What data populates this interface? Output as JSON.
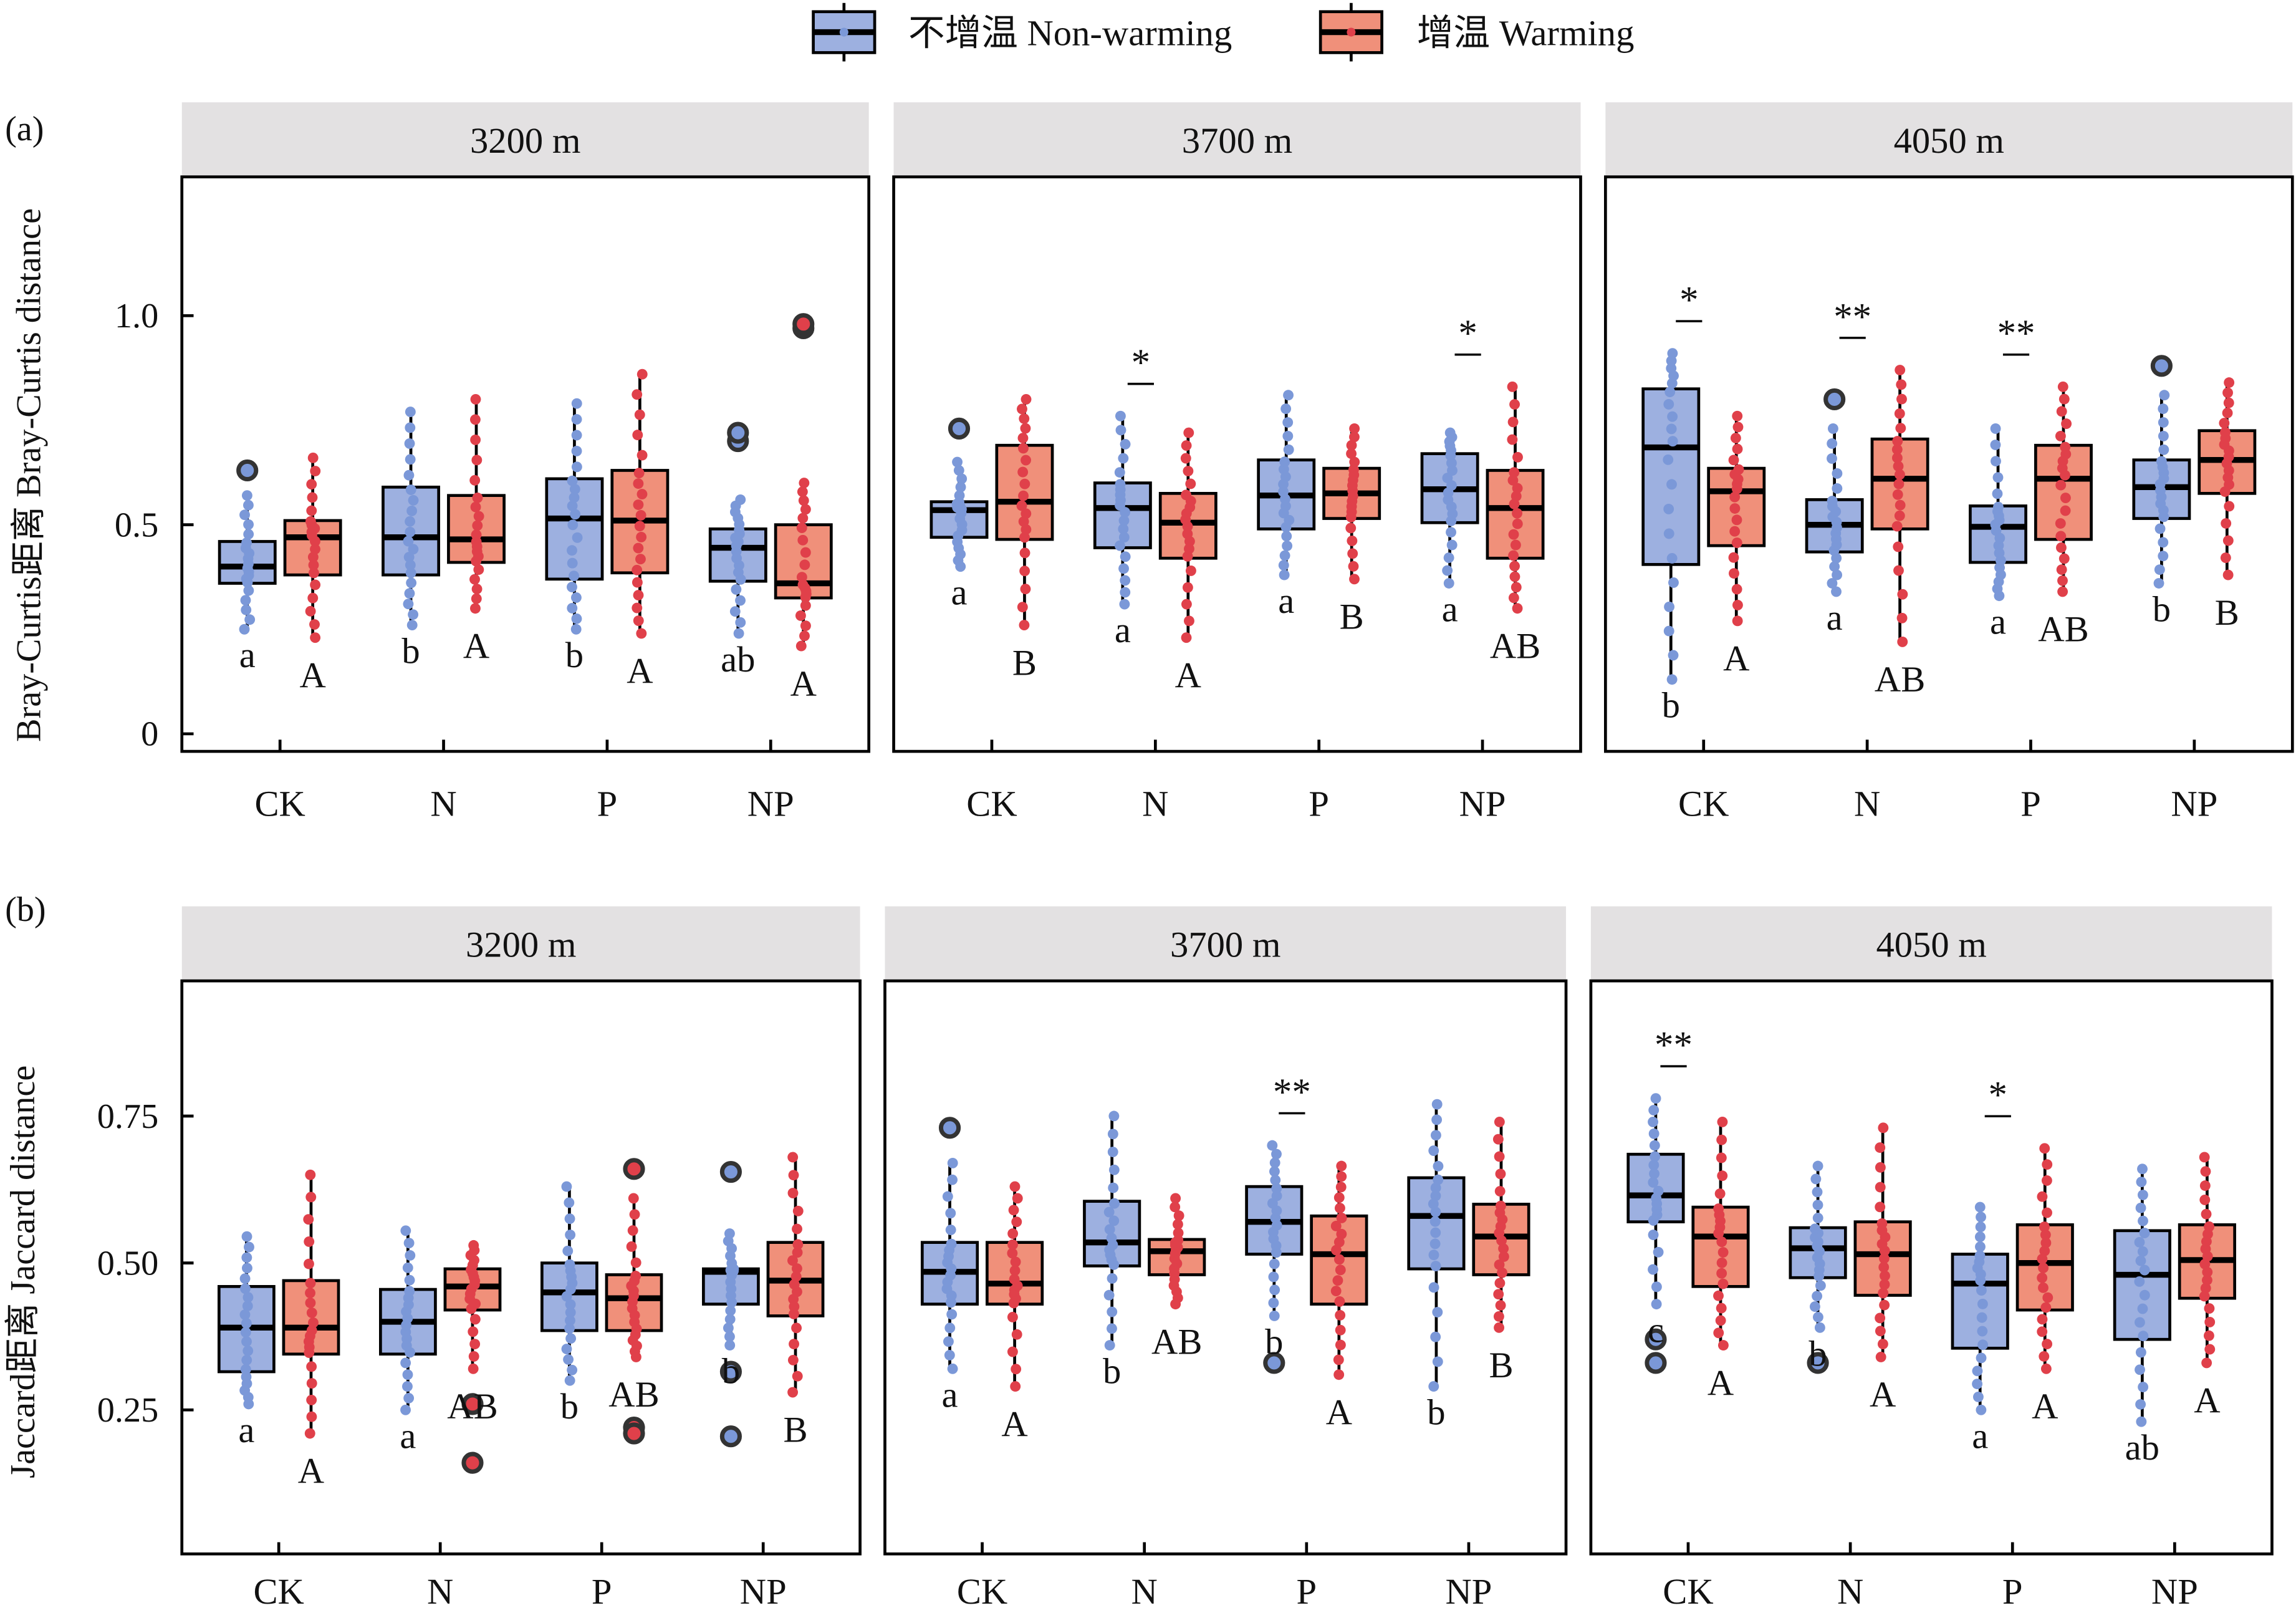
{
  "legend": {
    "items": [
      {
        "label": "不增温 Non-warming",
        "fill": "#9db0e0",
        "dot": "#7b98d8"
      },
      {
        "label": "增温 Warming",
        "fill": "#f0907a",
        "dot": "#e0404a"
      }
    ]
  },
  "colors": {
    "strip_bg": "#e3e1e2",
    "outlier_ring": "#333333",
    "median": "#000000"
  },
  "chart_data": [
    {
      "type": "box",
      "panel_label": "(a)",
      "ylabel": "Bray-Curtis距离 Bray-Curtis distance",
      "ylim": [
        -0.042,
        1.332
      ],
      "yticks": [
        {
          "v": 0,
          "label": "0"
        },
        {
          "v": 0.5,
          "label": "0.5"
        },
        {
          "v": 1.0,
          "label": "1.0"
        }
      ],
      "categories": [
        "CK",
        "N",
        "P",
        "NP"
      ],
      "facets": [
        {
          "title": "3200 m",
          "groups": [
            {
              "non": {
                "q1": 0.36,
                "med": 0.4,
                "q3": 0.46,
                "lo": 0.25,
                "hi": 0.57,
                "out": [
                  0.63
                ],
                "letter": "a"
              },
              "warm": {
                "q1": 0.38,
                "med": 0.47,
                "q3": 0.51,
                "lo": 0.23,
                "hi": 0.66,
                "out": [],
                "letter": "A"
              },
              "sig": ""
            },
            {
              "non": {
                "q1": 0.38,
                "med": 0.47,
                "q3": 0.59,
                "lo": 0.26,
                "hi": 0.77,
                "out": [],
                "letter": "b"
              },
              "warm": {
                "q1": 0.41,
                "med": 0.465,
                "q3": 0.57,
                "lo": 0.3,
                "hi": 0.8,
                "out": [],
                "letter": "A"
              },
              "sig": ""
            },
            {
              "non": {
                "q1": 0.37,
                "med": 0.515,
                "q3": 0.61,
                "lo": 0.25,
                "hi": 0.79,
                "out": [],
                "letter": "b"
              },
              "warm": {
                "q1": 0.385,
                "med": 0.51,
                "q3": 0.63,
                "lo": 0.24,
                "hi": 0.86,
                "out": [],
                "letter": "A"
              },
              "sig": ""
            },
            {
              "non": {
                "q1": 0.365,
                "med": 0.445,
                "q3": 0.49,
                "lo": 0.24,
                "hi": 0.56,
                "out": [
                  0.7,
                  0.72
                ],
                "letter": "ab"
              },
              "warm": {
                "q1": 0.325,
                "med": 0.36,
                "q3": 0.5,
                "lo": 0.21,
                "hi": 0.6,
                "out": [
                  0.97,
                  0.98
                ],
                "letter": "A"
              },
              "sig": ""
            }
          ]
        },
        {
          "title": "3700 m",
          "groups": [
            {
              "non": {
                "q1": 0.47,
                "med": 0.535,
                "q3": 0.555,
                "lo": 0.4,
                "hi": 0.65,
                "out": [
                  0.73
                ],
                "letter": "a"
              },
              "warm": {
                "q1": 0.465,
                "med": 0.555,
                "q3": 0.69,
                "lo": 0.26,
                "hi": 0.8,
                "out": [],
                "letter": "B"
              },
              "sig": ""
            },
            {
              "non": {
                "q1": 0.445,
                "med": 0.54,
                "q3": 0.6,
                "lo": 0.31,
                "hi": 0.76,
                "out": [],
                "letter": "a"
              },
              "warm": {
                "q1": 0.42,
                "med": 0.505,
                "q3": 0.575,
                "lo": 0.23,
                "hi": 0.72,
                "out": [],
                "letter": "A"
              },
              "sig": "*"
            },
            {
              "non": {
                "q1": 0.49,
                "med": 0.57,
                "q3": 0.655,
                "lo": 0.38,
                "hi": 0.81,
                "out": [],
                "letter": "a"
              },
              "warm": {
                "q1": 0.515,
                "med": 0.575,
                "q3": 0.635,
                "lo": 0.37,
                "hi": 0.73,
                "out": [],
                "letter": "B"
              },
              "sig": ""
            },
            {
              "non": {
                "q1": 0.505,
                "med": 0.585,
                "q3": 0.67,
                "lo": 0.36,
                "hi": 0.72,
                "out": [],
                "letter": "a"
              },
              "warm": {
                "q1": 0.42,
                "med": 0.54,
                "q3": 0.63,
                "lo": 0.3,
                "hi": 0.83,
                "out": [],
                "letter": "AB"
              },
              "sig": "*"
            }
          ]
        },
        {
          "title": "4050 m",
          "groups": [
            {
              "non": {
                "q1": 0.405,
                "med": 0.685,
                "q3": 0.825,
                "lo": 0.13,
                "hi": 0.91,
                "out": [],
                "letter": "b"
              },
              "warm": {
                "q1": 0.45,
                "med": 0.58,
                "q3": 0.635,
                "lo": 0.27,
                "hi": 0.76,
                "out": [],
                "letter": "A"
              },
              "sig": "*"
            },
            {
              "non": {
                "q1": 0.435,
                "med": 0.5,
                "q3": 0.56,
                "lo": 0.34,
                "hi": 0.73,
                "out": [
                  0.8
                ],
                "letter": "a"
              },
              "warm": {
                "q1": 0.49,
                "med": 0.61,
                "q3": 0.705,
                "lo": 0.22,
                "hi": 0.87,
                "out": [],
                "letter": "AB"
              },
              "sig": "**"
            },
            {
              "non": {
                "q1": 0.41,
                "med": 0.495,
                "q3": 0.545,
                "lo": 0.33,
                "hi": 0.73,
                "out": [],
                "letter": "a"
              },
              "warm": {
                "q1": 0.465,
                "med": 0.61,
                "q3": 0.69,
                "lo": 0.34,
                "hi": 0.83,
                "out": [],
                "letter": "AB"
              },
              "sig": "**"
            },
            {
              "non": {
                "q1": 0.515,
                "med": 0.59,
                "q3": 0.655,
                "lo": 0.36,
                "hi": 0.81,
                "out": [
                  0.88
                ],
                "letter": "b"
              },
              "warm": {
                "q1": 0.575,
                "med": 0.655,
                "q3": 0.725,
                "lo": 0.38,
                "hi": 0.84,
                "out": [],
                "letter": "B"
              },
              "sig": ""
            }
          ]
        }
      ]
    },
    {
      "type": "box",
      "panel_label": "(b)",
      "ylabel": "Jaccard距离 Jaccard distance",
      "ylim": [
        0.005,
        0.98
      ],
      "yticks": [
        {
          "v": 0.25,
          "label": "0.25"
        },
        {
          "v": 0.5,
          "label": "0.50"
        },
        {
          "v": 0.75,
          "label": "0.75"
        }
      ],
      "categories": [
        "CK",
        "N",
        "P",
        "NP"
      ],
      "facets": [
        {
          "title": "3200 m",
          "groups": [
            {
              "non": {
                "q1": 0.315,
                "med": 0.39,
                "q3": 0.46,
                "lo": 0.26,
                "hi": 0.545,
                "out": [],
                "letter": "a"
              },
              "warm": {
                "q1": 0.345,
                "med": 0.39,
                "q3": 0.47,
                "lo": 0.21,
                "hi": 0.65,
                "out": [],
                "letter": "A"
              },
              "sig": ""
            },
            {
              "non": {
                "q1": 0.345,
                "med": 0.4,
                "q3": 0.455,
                "lo": 0.25,
                "hi": 0.555,
                "out": [],
                "letter": "a"
              },
              "warm": {
                "q1": 0.42,
                "med": 0.46,
                "q3": 0.49,
                "lo": 0.32,
                "hi": 0.53,
                "out": [
                  0.26,
                  0.16
                ],
                "letter": "AB"
              },
              "sig": ""
            },
            {
              "non": {
                "q1": 0.385,
                "med": 0.45,
                "q3": 0.5,
                "lo": 0.3,
                "hi": 0.63,
                "out": [],
                "letter": "b"
              },
              "warm": {
                "q1": 0.385,
                "med": 0.44,
                "q3": 0.48,
                "lo": 0.34,
                "hi": 0.61,
                "out": [
                  0.66,
                  0.22,
                  0.21
                ],
                "letter": "AB"
              },
              "sig": ""
            },
            {
              "non": {
                "q1": 0.43,
                "med": 0.485,
                "q3": 0.49,
                "lo": 0.36,
                "hi": 0.55,
                "out": [
                  0.655,
                  0.315,
                  0.205
                ],
                "letter": "b"
              },
              "warm": {
                "q1": 0.41,
                "med": 0.47,
                "q3": 0.535,
                "lo": 0.28,
                "hi": 0.68,
                "out": [],
                "letter": "B"
              },
              "sig": ""
            }
          ]
        },
        {
          "title": "3700 m",
          "groups": [
            {
              "non": {
                "q1": 0.43,
                "med": 0.485,
                "q3": 0.535,
                "lo": 0.32,
                "hi": 0.67,
                "out": [
                  0.73
                ],
                "letter": "a"
              },
              "warm": {
                "q1": 0.43,
                "med": 0.465,
                "q3": 0.535,
                "lo": 0.29,
                "hi": 0.63,
                "out": [],
                "letter": "A"
              },
              "sig": ""
            },
            {
              "non": {
                "q1": 0.495,
                "med": 0.535,
                "q3": 0.605,
                "lo": 0.36,
                "hi": 0.75,
                "out": [],
                "letter": "b"
              },
              "warm": {
                "q1": 0.48,
                "med": 0.52,
                "q3": 0.54,
                "lo": 0.43,
                "hi": 0.61,
                "out": [],
                "letter": "AB"
              },
              "sig": ""
            },
            {
              "non": {
                "q1": 0.515,
                "med": 0.57,
                "q3": 0.63,
                "lo": 0.41,
                "hi": 0.7,
                "out": [
                  0.33
                ],
                "letter": "b"
              },
              "warm": {
                "q1": 0.43,
                "med": 0.515,
                "q3": 0.58,
                "lo": 0.31,
                "hi": 0.665,
                "out": [],
                "letter": "A"
              },
              "sig": "**"
            },
            {
              "non": {
                "q1": 0.49,
                "med": 0.58,
                "q3": 0.645,
                "lo": 0.29,
                "hi": 0.77,
                "out": [],
                "letter": "b"
              },
              "warm": {
                "q1": 0.48,
                "med": 0.545,
                "q3": 0.6,
                "lo": 0.39,
                "hi": 0.74,
                "out": [],
                "letter": "B"
              },
              "sig": ""
            }
          ]
        },
        {
          "title": "4050 m",
          "groups": [
            {
              "non": {
                "q1": 0.57,
                "med": 0.615,
                "q3": 0.685,
                "lo": 0.43,
                "hi": 0.78,
                "out": [
                  0.37,
                  0.33
                ],
                "letter": "c"
              },
              "warm": {
                "q1": 0.46,
                "med": 0.545,
                "q3": 0.595,
                "lo": 0.36,
                "hi": 0.74,
                "out": [],
                "letter": "A"
              },
              "sig": "**"
            },
            {
              "non": {
                "q1": 0.475,
                "med": 0.525,
                "q3": 0.56,
                "lo": 0.39,
                "hi": 0.665,
                "out": [
                  0.33
                ],
                "letter": "b"
              },
              "warm": {
                "q1": 0.445,
                "med": 0.515,
                "q3": 0.57,
                "lo": 0.34,
                "hi": 0.73,
                "out": [],
                "letter": "A"
              },
              "sig": ""
            },
            {
              "non": {
                "q1": 0.355,
                "med": 0.465,
                "q3": 0.515,
                "lo": 0.25,
                "hi": 0.595,
                "out": [],
                "letter": "a"
              },
              "warm": {
                "q1": 0.42,
                "med": 0.5,
                "q3": 0.565,
                "lo": 0.32,
                "hi": 0.695,
                "out": [],
                "letter": "A"
              },
              "sig": "*"
            },
            {
              "non": {
                "q1": 0.37,
                "med": 0.48,
                "q3": 0.555,
                "lo": 0.23,
                "hi": 0.66,
                "out": [],
                "letter": "ab"
              },
              "warm": {
                "q1": 0.44,
                "med": 0.505,
                "q3": 0.565,
                "lo": 0.33,
                "hi": 0.68,
                "out": [],
                "letter": "A"
              },
              "sig": ""
            }
          ]
        }
      ]
    }
  ]
}
